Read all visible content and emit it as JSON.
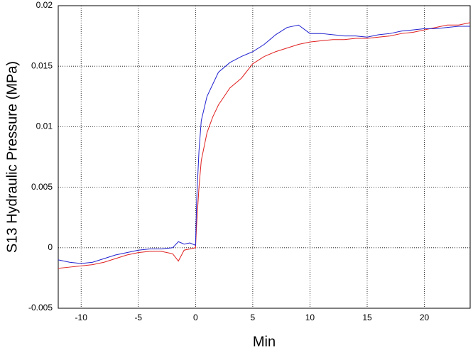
{
  "chart_data": {
    "type": "line",
    "x_label": "Min",
    "y_label": "S13  Hydraulic Pressure (MPa)",
    "x": [
      -12,
      -11,
      -10,
      -9,
      -8,
      -7,
      -6,
      -5,
      -4,
      -3,
      -2,
      -1.5,
      -1,
      -0.5,
      0,
      0.1,
      0.3,
      0.5,
      1,
      1.5,
      2,
      3,
      4,
      5,
      6,
      7,
      8,
      9,
      10,
      11,
      12,
      13,
      14,
      15,
      16,
      17,
      18,
      19,
      20,
      21,
      22,
      23,
      24
    ],
    "series": [
      {
        "color": "#e02020",
        "values": [
          -0.0017,
          -0.0016,
          -0.0015,
          -0.0014,
          -0.0012,
          -0.0009,
          -0.0006,
          -0.0004,
          -0.0003,
          -0.0003,
          -0.0005,
          -0.0011,
          -0.0002,
          -0.0001,
          0,
          0.002,
          0.005,
          0.0072,
          0.0095,
          0.0108,
          0.0118,
          0.0132,
          0.014,
          0.0152,
          0.0158,
          0.0162,
          0.0165,
          0.0168,
          0.017,
          0.0171,
          0.0172,
          0.0172,
          0.0173,
          0.0173,
          0.0174,
          0.0175,
          0.0177,
          0.0178,
          0.018,
          0.0182,
          0.0184,
          0.0184,
          0.0186
        ]
      },
      {
        "color": "#2020d0",
        "values": [
          -0.001,
          -0.0012,
          -0.0013,
          -0.0012,
          -0.0009,
          -0.0006,
          -0.0004,
          -0.0002,
          -0.0001,
          -0.0001,
          0,
          0.0005,
          0.0003,
          0.0004,
          0.0002,
          0.004,
          0.008,
          0.0105,
          0.0125,
          0.0135,
          0.0145,
          0.0153,
          0.0158,
          0.0162,
          0.0168,
          0.0176,
          0.0182,
          0.0184,
          0.0177,
          0.0177,
          0.0176,
          0.0175,
          0.0175,
          0.0174,
          0.0176,
          0.0177,
          0.0179,
          0.018,
          0.0181,
          0.0181,
          0.0182,
          0.0183,
          0.0183
        ]
      }
    ],
    "xlim": [
      -12,
      24
    ],
    "xticks": [
      -10,
      -5,
      0,
      5,
      10,
      15,
      20
    ],
    "ylim": [
      -0.005,
      0.02
    ],
    "yticks": [
      -0.005,
      0,
      0.005,
      0.01,
      0.015,
      0.02
    ],
    "grid": true
  }
}
